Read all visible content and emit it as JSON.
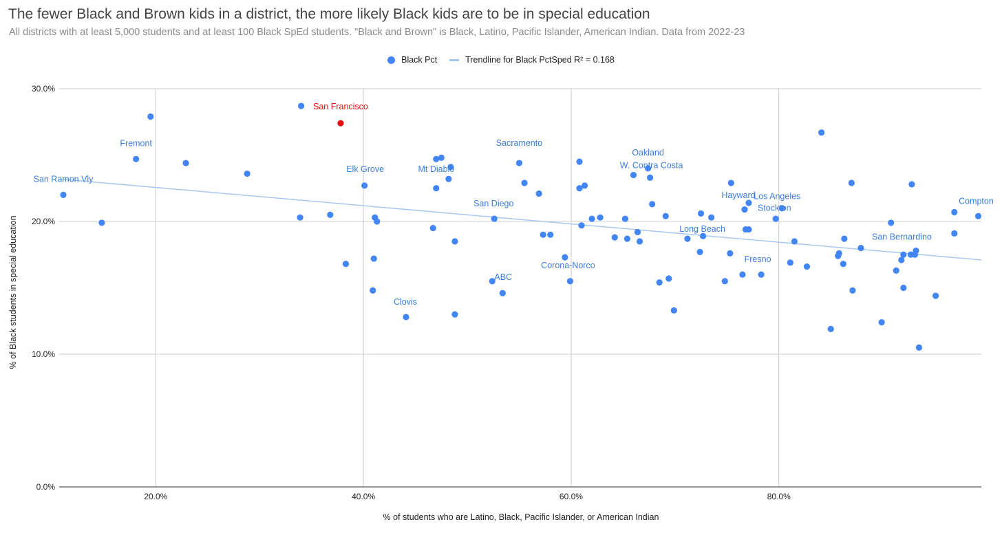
{
  "title": "The fewer Black and Brown kids in a district, the more likely Black kids are to be in special education",
  "subtitle": "All districts with at least 5,000 students and at least 100 Black SpEd students. \"Black and Brown\" is Black, Latino, Pacific Islander, American Indian. Data from 2022-23",
  "legend": {
    "series_label": "Black Pct",
    "trend_label": "Trendline for Black PctSped R² = 0.168"
  },
  "colors": {
    "point": "#4285f4",
    "highlight": "#ea0d0d",
    "trendline": "#a8c7ee",
    "label": "#3b7ddd",
    "grid": "#cccccc",
    "axis": "#333333"
  },
  "chart_data": {
    "type": "scatter",
    "xlabel": "% of students who are Latino, Black, Pacific Islander, or American Indian",
    "ylabel": "% of Black students in special education",
    "xlim": [
      10.7,
      99.5
    ],
    "ylim": [
      0,
      30
    ],
    "x_ticks": [
      {
        "value": 20,
        "label": "20.0%"
      },
      {
        "value": 40,
        "label": "40.0%"
      },
      {
        "value": 60,
        "label": "60.0%"
      },
      {
        "value": 80,
        "label": "80.0%"
      }
    ],
    "y_ticks": [
      {
        "value": 0,
        "label": "0.0%"
      },
      {
        "value": 10,
        "label": "10.0%"
      },
      {
        "value": 20,
        "label": "20.0%"
      },
      {
        "value": 30,
        "label": "30.0%"
      }
    ],
    "grid": true,
    "legend_position": "top",
    "trendline": {
      "x": [
        10.7,
        99.5
      ],
      "y": [
        23.2,
        17.1
      ],
      "r_squared": 0.168
    },
    "labels": [
      {
        "text": "San Francisco",
        "x": 37.8,
        "y": 27.4,
        "highlight": true
      },
      {
        "text": "Fremont",
        "x": 18.1,
        "y": 24.7
      },
      {
        "text": "San Ramon Vly",
        "x": 11.1,
        "y": 22.0
      },
      {
        "text": "Elk Grove",
        "x": 40.1,
        "y": 22.7
      },
      {
        "text": "Mt Diablo",
        "x": 48.2,
        "y": 23.2
      },
      {
        "text": "Sacramento",
        "x": 55.0,
        "y": 24.4
      },
      {
        "text": "Oakland",
        "x": 67.4,
        "y": 24.0
      },
      {
        "text": "W. Contra Costa",
        "x": 67.6,
        "y": 23.3
      },
      {
        "text": "San Diego",
        "x": 52.6,
        "y": 20.2
      },
      {
        "text": "Los Angeles",
        "x": 80.1,
        "y": 21.0
      },
      {
        "text": "Stockton",
        "x": 80.3,
        "y": 21.0
      },
      {
        "text": "Hayward",
        "x": 77.1,
        "y": 21.4
      },
      {
        "text": "Long Beach",
        "x": 72.7,
        "y": 18.9
      },
      {
        "text": "Compton",
        "x": 99.2,
        "y": 20.4
      },
      {
        "text": "San Bernardino",
        "x": 93.3,
        "y": 17.8
      },
      {
        "text": "Fresno",
        "x": 78.3,
        "y": 16.0
      },
      {
        "text": "Corona-Norco",
        "x": 59.9,
        "y": 15.5
      },
      {
        "text": "ABC",
        "x": 52.4,
        "y": 15.5
      },
      {
        "text": "Clovis",
        "x": 44.1,
        "y": 12.8
      },
      {
        "text": "Compton",
        "x": 99.2,
        "y": 20.4
      }
    ],
    "series": [
      {
        "name": "Black Pct",
        "points": [
          [
            11.1,
            22.0
          ],
          [
            14.8,
            19.9
          ],
          [
            18.1,
            24.7
          ],
          [
            19.5,
            27.9
          ],
          [
            22.9,
            24.4
          ],
          [
            28.8,
            23.6
          ],
          [
            33.9,
            20.3
          ],
          [
            34.0,
            28.7
          ],
          [
            36.8,
            20.5
          ],
          [
            37.8,
            27.4
          ],
          [
            38.3,
            16.8
          ],
          [
            40.1,
            22.7
          ],
          [
            40.9,
            14.8
          ],
          [
            41.0,
            17.2
          ],
          [
            41.1,
            20.3
          ],
          [
            41.3,
            20.0
          ],
          [
            44.1,
            12.8
          ],
          [
            46.7,
            19.5
          ],
          [
            47.0,
            22.5
          ],
          [
            47.0,
            24.7
          ],
          [
            47.5,
            24.8
          ],
          [
            48.2,
            23.2
          ],
          [
            48.4,
            24.1
          ],
          [
            48.8,
            18.5
          ],
          [
            48.8,
            13.0
          ],
          [
            52.4,
            15.5
          ],
          [
            52.6,
            20.2
          ],
          [
            53.4,
            14.6
          ],
          [
            55.0,
            24.4
          ],
          [
            55.5,
            22.9
          ],
          [
            56.9,
            22.1
          ],
          [
            57.3,
            19.0
          ],
          [
            58.0,
            19.0
          ],
          [
            59.4,
            17.3
          ],
          [
            59.9,
            15.5
          ],
          [
            60.8,
            22.5
          ],
          [
            60.8,
            24.5
          ],
          [
            61.0,
            19.7
          ],
          [
            61.3,
            22.7
          ],
          [
            62.0,
            20.2
          ],
          [
            62.8,
            20.3
          ],
          [
            64.2,
            18.8
          ],
          [
            65.2,
            20.2
          ],
          [
            65.4,
            18.7
          ],
          [
            66.0,
            23.5
          ],
          [
            66.4,
            19.2
          ],
          [
            66.6,
            18.5
          ],
          [
            67.4,
            24.0
          ],
          [
            67.6,
            23.3
          ],
          [
            67.8,
            21.3
          ],
          [
            68.5,
            15.4
          ],
          [
            69.1,
            20.4
          ],
          [
            69.4,
            15.7
          ],
          [
            69.9,
            13.3
          ],
          [
            71.2,
            18.7
          ],
          [
            72.4,
            17.7
          ],
          [
            72.5,
            20.6
          ],
          [
            72.7,
            18.9
          ],
          [
            73.5,
            20.3
          ],
          [
            74.8,
            15.5
          ],
          [
            75.3,
            17.6
          ],
          [
            75.4,
            22.9
          ],
          [
            76.5,
            16.0
          ],
          [
            76.7,
            20.9
          ],
          [
            76.8,
            19.4
          ],
          [
            77.1,
            21.4
          ],
          [
            77.1,
            19.4
          ],
          [
            78.3,
            16.0
          ],
          [
            79.7,
            20.2
          ],
          [
            80.3,
            21.0
          ],
          [
            81.1,
            16.9
          ],
          [
            81.5,
            18.5
          ],
          [
            82.7,
            16.6
          ],
          [
            84.1,
            26.7
          ],
          [
            85.0,
            11.9
          ],
          [
            85.7,
            17.4
          ],
          [
            85.8,
            17.6
          ],
          [
            86.2,
            16.8
          ],
          [
            86.3,
            18.7
          ],
          [
            87.0,
            22.9
          ],
          [
            87.1,
            14.8
          ],
          [
            87.9,
            18.0
          ],
          [
            89.9,
            12.4
          ],
          [
            90.8,
            19.9
          ],
          [
            91.3,
            16.3
          ],
          [
            91.8,
            17.1
          ],
          [
            92.0,
            17.5
          ],
          [
            92.0,
            15.0
          ],
          [
            92.7,
            17.5
          ],
          [
            92.8,
            22.8
          ],
          [
            93.1,
            17.5
          ],
          [
            93.2,
            17.8
          ],
          [
            93.5,
            10.5
          ],
          [
            95.1,
            14.4
          ],
          [
            96.9,
            20.7
          ],
          [
            96.9,
            19.1
          ],
          [
            99.2,
            20.4
          ]
        ],
        "highlight_point": [
          37.8,
          27.4
        ]
      }
    ]
  }
}
